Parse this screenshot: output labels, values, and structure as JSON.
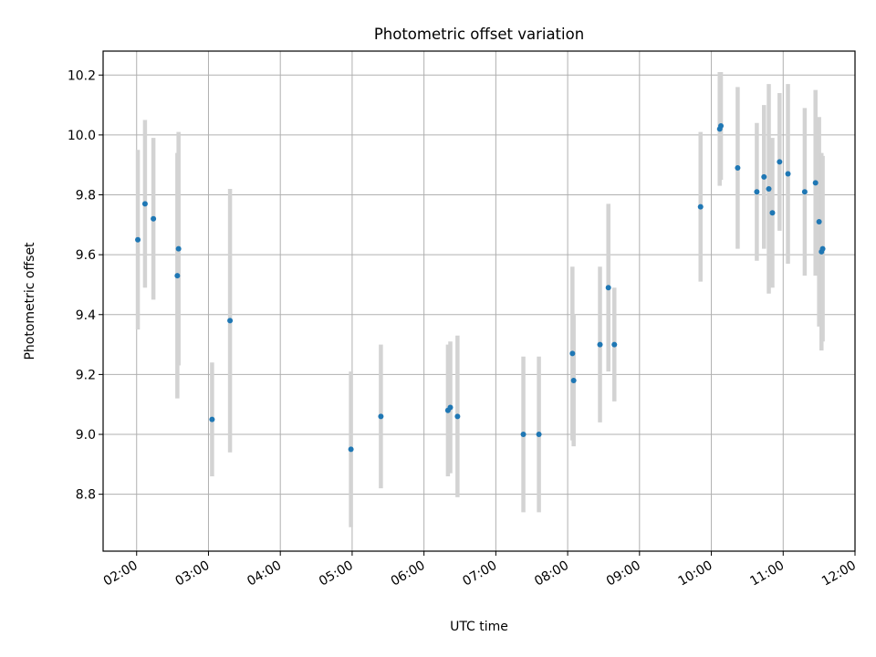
{
  "chart_data": {
    "type": "scatter",
    "title": "Photometric offset variation",
    "xlabel": "UTC time",
    "ylabel": "Photometric offset",
    "xlim": [
      "01:32",
      "12:00"
    ],
    "ylim": [
      8.61,
      10.28
    ],
    "xticks": [
      "02:00",
      "03:00",
      "04:00",
      "05:00",
      "06:00",
      "07:00",
      "08:00",
      "09:00",
      "10:00",
      "11:00",
      "12:00"
    ],
    "yticks": [
      8.8,
      9.0,
      9.2,
      9.4,
      9.6,
      9.8,
      10.0,
      10.2
    ],
    "grid": true,
    "colors": {
      "point": "#1f77b4",
      "errorbar": "#d3d3d3"
    },
    "points": [
      {
        "x": "02:01",
        "y": 9.65,
        "err": 0.3
      },
      {
        "x": "02:07",
        "y": 9.77,
        "err": 0.28
      },
      {
        "x": "02:14",
        "y": 9.72,
        "err": 0.27
      },
      {
        "x": "02:34",
        "y": 9.53,
        "err": 0.41
      },
      {
        "x": "02:35",
        "y": 9.62,
        "err": 0.39
      },
      {
        "x": "03:03",
        "y": 9.05,
        "err": 0.19
      },
      {
        "x": "03:18",
        "y": 9.38,
        "err": 0.44
      },
      {
        "x": "04:59",
        "y": 8.95,
        "err": 0.26
      },
      {
        "x": "05:24",
        "y": 9.06,
        "err": 0.24
      },
      {
        "x": "06:20",
        "y": 9.08,
        "err": 0.22
      },
      {
        "x": "06:22",
        "y": 9.09,
        "err": 0.22
      },
      {
        "x": "06:28",
        "y": 9.06,
        "err": 0.27
      },
      {
        "x": "07:23",
        "y": 9.0,
        "err": 0.26
      },
      {
        "x": "07:36",
        "y": 9.0,
        "err": 0.26
      },
      {
        "x": "08:04",
        "y": 9.27,
        "err": 0.29
      },
      {
        "x": "08:05",
        "y": 9.18,
        "err": 0.22
      },
      {
        "x": "08:27",
        "y": 9.3,
        "err": 0.26
      },
      {
        "x": "08:34",
        "y": 9.49,
        "err": 0.28
      },
      {
        "x": "08:39",
        "y": 9.3,
        "err": 0.19
      },
      {
        "x": "09:51",
        "y": 9.76,
        "err": 0.25
      },
      {
        "x": "10:07",
        "y": 10.02,
        "err": 0.19
      },
      {
        "x": "10:08",
        "y": 10.03,
        "err": 0.18
      },
      {
        "x": "10:22",
        "y": 9.89,
        "err": 0.27
      },
      {
        "x": "10:38",
        "y": 9.81,
        "err": 0.23
      },
      {
        "x": "10:44",
        "y": 9.86,
        "err": 0.24
      },
      {
        "x": "10:48",
        "y": 9.82,
        "err": 0.35
      },
      {
        "x": "10:51",
        "y": 9.74,
        "err": 0.25
      },
      {
        "x": "10:57",
        "y": 9.91,
        "err": 0.23
      },
      {
        "x": "11:04",
        "y": 9.87,
        "err": 0.3
      },
      {
        "x": "11:18",
        "y": 9.81,
        "err": 0.28
      },
      {
        "x": "11:27",
        "y": 9.84,
        "err": 0.31
      },
      {
        "x": "11:30",
        "y": 9.71,
        "err": 0.35
      },
      {
        "x": "11:32",
        "y": 9.61,
        "err": 0.33
      },
      {
        "x": "11:33",
        "y": 9.62,
        "err": 0.31
      }
    ]
  }
}
